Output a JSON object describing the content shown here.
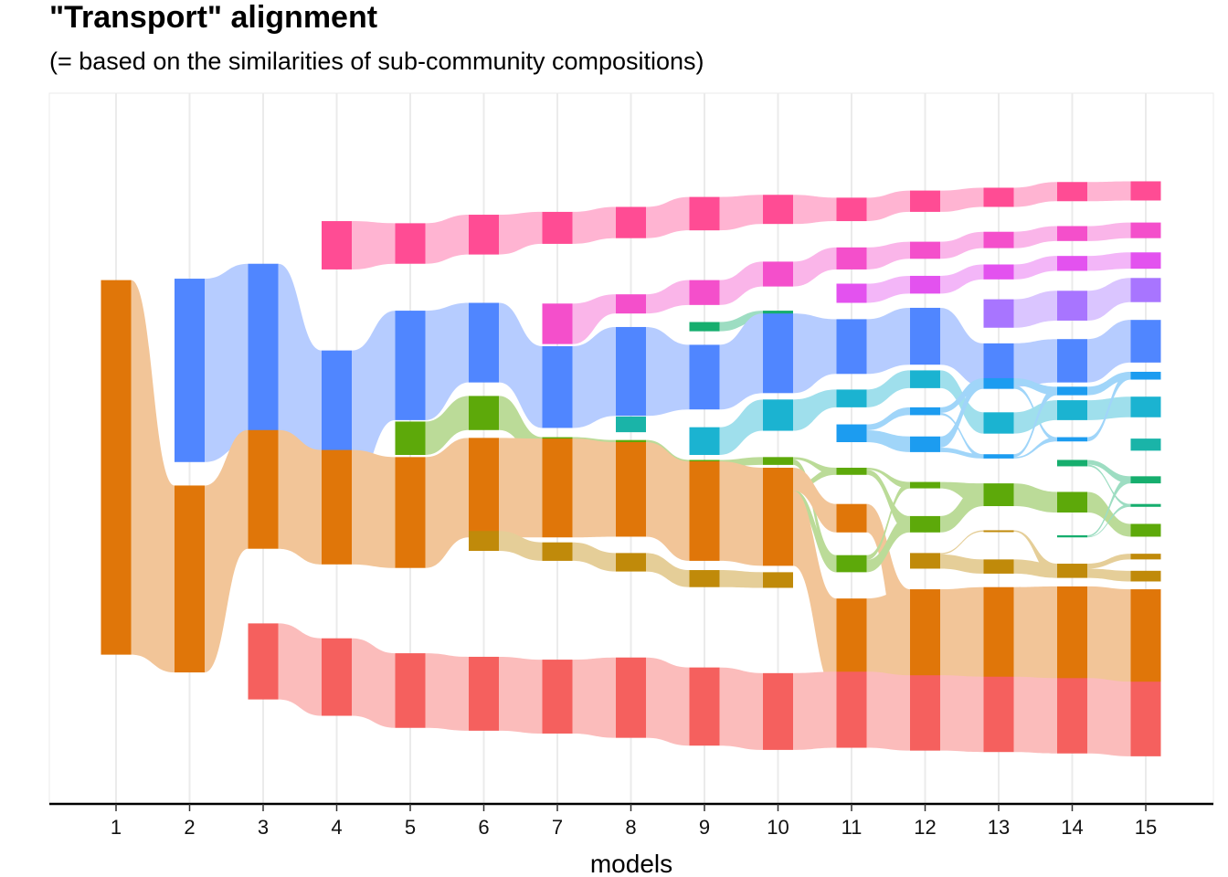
{
  "chart_data": {
    "type": "alluvial",
    "title": "\"Transport\" alignment",
    "subtitle": "(= based on the similarities of sub-community compositions)",
    "xlabel": "models",
    "ylabel": "",
    "x": [
      1,
      2,
      3,
      4,
      5,
      6,
      7,
      8,
      9,
      10,
      11,
      12,
      13,
      14,
      15
    ],
    "ylim": [
      0,
      1
    ],
    "grid": "vertical",
    "legend": "none",
    "colors": {
      "orange": "#E07609",
      "blue": "#5086FF",
      "red": "#F5605E",
      "pink": "#FF4C94",
      "green": "#5DA90A",
      "olive": "#C08A0A",
      "teal": "#1AB4A8",
      "magenta": "#F44FCB",
      "emerald": "#16AE6E",
      "cyan": "#1BB3D1",
      "sky": "#1C9CF0",
      "purple": "#E352EF",
      "violet": "#A875FF"
    },
    "nodes": [
      [
        {
          "c": "orange",
          "y0": 0.21,
          "y1": 0.737
        }
      ],
      [
        {
          "c": "blue",
          "y0": 0.481,
          "y1": 0.739
        },
        {
          "c": "orange",
          "y0": 0.185,
          "y1": 0.448
        }
      ],
      [
        {
          "c": "blue",
          "y0": 0.507,
          "y1": 0.76
        },
        {
          "c": "orange",
          "y0": 0.359,
          "y1": 0.526
        },
        {
          "c": "red",
          "y0": 0.147,
          "y1": 0.254
        }
      ],
      [
        {
          "c": "pink",
          "y0": 0.752,
          "y1": 0.82
        },
        {
          "c": "blue",
          "y0": 0.448,
          "y1": 0.638
        },
        {
          "c": "orange",
          "y0": 0.337,
          "y1": 0.498
        },
        {
          "c": "red",
          "y0": 0.124,
          "y1": 0.233
        }
      ],
      [
        {
          "c": "pink",
          "y0": 0.76,
          "y1": 0.817
        },
        {
          "c": "blue",
          "y0": 0.54,
          "y1": 0.694
        },
        {
          "c": "green",
          "y0": 0.491,
          "y1": 0.538
        },
        {
          "c": "orange",
          "y0": 0.332,
          "y1": 0.488
        },
        {
          "c": "red",
          "y0": 0.107,
          "y1": 0.212
        }
      ],
      [
        {
          "c": "pink",
          "y0": 0.773,
          "y1": 0.829
        },
        {
          "c": "blue",
          "y0": 0.593,
          "y1": 0.705
        },
        {
          "c": "green",
          "y0": 0.526,
          "y1": 0.574
        },
        {
          "c": "orange",
          "y0": 0.375,
          "y1": 0.515
        },
        {
          "c": "olive",
          "y0": 0.356,
          "y1": 0.384
        },
        {
          "c": "red",
          "y0": 0.103,
          "y1": 0.207
        }
      ],
      [
        {
          "c": "pink",
          "y0": 0.788,
          "y1": 0.833
        },
        {
          "c": "magenta",
          "y0": 0.647,
          "y1": 0.704
        },
        {
          "c": "blue",
          "y0": 0.529,
          "y1": 0.644
        },
        {
          "c": "green",
          "y0": 0.483,
          "y1": 0.516
        },
        {
          "c": "orange",
          "y0": 0.375,
          "y1": 0.514
        },
        {
          "c": "olive",
          "y0": 0.342,
          "y1": 0.368
        },
        {
          "c": "red",
          "y0": 0.099,
          "y1": 0.203
        }
      ],
      [
        {
          "c": "pink",
          "y0": 0.796,
          "y1": 0.84
        },
        {
          "c": "magenta",
          "y0": 0.69,
          "y1": 0.717
        },
        {
          "c": "blue",
          "y0": 0.546,
          "y1": 0.671
        },
        {
          "c": "teal",
          "y0": 0.523,
          "y1": 0.545
        },
        {
          "c": "green",
          "y0": 0.485,
          "y1": 0.512
        },
        {
          "c": "orange",
          "y0": 0.376,
          "y1": 0.509
        },
        {
          "c": "olive",
          "y0": 0.327,
          "y1": 0.353
        },
        {
          "c": "red",
          "y0": 0.093,
          "y1": 0.206
        }
      ],
      [
        {
          "c": "pink",
          "y0": 0.807,
          "y1": 0.854
        },
        {
          "c": "magenta",
          "y0": 0.702,
          "y1": 0.737
        },
        {
          "c": "emerald",
          "y0": 0.665,
          "y1": 0.678
        },
        {
          "c": "blue",
          "y0": 0.555,
          "y1": 0.646
        },
        {
          "c": "cyan",
          "y0": 0.491,
          "y1": 0.53
        },
        {
          "c": "green",
          "y0": 0.453,
          "y1": 0.484
        },
        {
          "c": "orange",
          "y0": 0.342,
          "y1": 0.482
        },
        {
          "c": "olive",
          "y0": 0.305,
          "y1": 0.329
        },
        {
          "c": "red",
          "y0": 0.082,
          "y1": 0.192
        }
      ],
      [
        {
          "c": "pink",
          "y0": 0.816,
          "y1": 0.857
        },
        {
          "c": "magenta",
          "y0": 0.728,
          "y1": 0.763
        },
        {
          "c": "emerald",
          "y0": 0.68,
          "y1": 0.694
        },
        {
          "c": "blue",
          "y0": 0.578,
          "y1": 0.69
        },
        {
          "c": "cyan",
          "y0": 0.525,
          "y1": 0.569
        },
        {
          "c": "green",
          "y0": 0.477,
          "y1": 0.488
        },
        {
          "c": "green",
          "y0": 0.425,
          "y1": 0.449
        },
        {
          "c": "orange",
          "y0": 0.335,
          "y1": 0.473
        },
        {
          "c": "olive",
          "y0": 0.304,
          "y1": 0.326
        },
        {
          "c": "red",
          "y0": 0.076,
          "y1": 0.184
        }
      ],
      [
        {
          "c": "pink",
          "y0": 0.82,
          "y1": 0.853
        },
        {
          "c": "magenta",
          "y0": 0.752,
          "y1": 0.783
        },
        {
          "c": "purple",
          "y0": 0.705,
          "y1": 0.732
        },
        {
          "c": "blue",
          "y0": 0.605,
          "y1": 0.682
        },
        {
          "c": "cyan",
          "y0": 0.558,
          "y1": 0.583
        },
        {
          "c": "sky",
          "y0": 0.509,
          "y1": 0.534
        },
        {
          "c": "green",
          "y0": 0.463,
          "y1": 0.473
        },
        {
          "c": "orange",
          "y0": 0.382,
          "y1": 0.422
        },
        {
          "c": "green",
          "y0": 0.326,
          "y1": 0.35
        },
        {
          "c": "orange",
          "y0": 0.158,
          "y1": 0.289
        },
        {
          "c": "red",
          "y0": 0.079,
          "y1": 0.186
        }
      ],
      [
        {
          "c": "pink",
          "y0": 0.833,
          "y1": 0.863
        },
        {
          "c": "magenta",
          "y0": 0.767,
          "y1": 0.791
        },
        {
          "c": "purple",
          "y0": 0.718,
          "y1": 0.743
        },
        {
          "c": "blue",
          "y0": 0.618,
          "y1": 0.698
        },
        {
          "c": "cyan",
          "y0": 0.585,
          "y1": 0.61
        },
        {
          "c": "sky",
          "y0": 0.547,
          "y1": 0.558
        },
        {
          "c": "sky",
          "y0": 0.495,
          "y1": 0.517
        },
        {
          "c": "green",
          "y0": 0.444,
          "y1": 0.453
        },
        {
          "c": "green",
          "y0": 0.382,
          "y1": 0.405
        },
        {
          "c": "olive",
          "y0": 0.331,
          "y1": 0.353
        },
        {
          "c": "orange",
          "y0": 0.163,
          "y1": 0.302
        },
        {
          "c": "red",
          "y0": 0.075,
          "y1": 0.181
        }
      ],
      [
        {
          "c": "pink",
          "y0": 0.84,
          "y1": 0.867
        },
        {
          "c": "magenta",
          "y0": 0.782,
          "y1": 0.805
        },
        {
          "c": "purple",
          "y0": 0.738,
          "y1": 0.759
        },
        {
          "c": "violet",
          "y0": 0.67,
          "y1": 0.71
        },
        {
          "c": "blue",
          "y0": 0.587,
          "y1": 0.648
        },
        {
          "c": "sky",
          "y0": 0.584,
          "y1": 0.599
        },
        {
          "c": "cyan",
          "y0": 0.521,
          "y1": 0.551
        },
        {
          "c": "sky",
          "y0": 0.486,
          "y1": 0.492
        },
        {
          "c": "green",
          "y0": 0.419,
          "y1": 0.451
        },
        {
          "c": "olive",
          "y0": 0.383,
          "y1": 0.385
        },
        {
          "c": "olive",
          "y0": 0.324,
          "y1": 0.344
        },
        {
          "c": "orange",
          "y0": 0.167,
          "y1": 0.305
        },
        {
          "c": "red",
          "y0": 0.073,
          "y1": 0.179
        }
      ],
      [
        {
          "c": "pink",
          "y0": 0.848,
          "y1": 0.875
        },
        {
          "c": "magenta",
          "y0": 0.792,
          "y1": 0.813
        },
        {
          "c": "purple",
          "y0": 0.75,
          "y1": 0.771
        },
        {
          "c": "violet",
          "y0": 0.68,
          "y1": 0.722
        },
        {
          "c": "blue",
          "y0": 0.593,
          "y1": 0.654
        },
        {
          "c": "sky",
          "y0": 0.575,
          "y1": 0.587
        },
        {
          "c": "cyan",
          "y0": 0.54,
          "y1": 0.568
        },
        {
          "c": "sky",
          "y0": 0.51,
          "y1": 0.516
        },
        {
          "c": "emerald",
          "y0": 0.475,
          "y1": 0.484
        },
        {
          "c": "green",
          "y0": 0.41,
          "y1": 0.439
        },
        {
          "c": "emerald",
          "y0": 0.375,
          "y1": 0.378
        },
        {
          "c": "olive",
          "y0": 0.318,
          "y1": 0.338
        },
        {
          "c": "orange",
          "y0": 0.167,
          "y1": 0.306
        },
        {
          "c": "red",
          "y0": 0.071,
          "y1": 0.177
        }
      ],
      [
        {
          "c": "pink",
          "y0": 0.849,
          "y1": 0.876
        },
        {
          "c": "magenta",
          "y0": 0.796,
          "y1": 0.818
        },
        {
          "c": "purple",
          "y0": 0.753,
          "y1": 0.776
        },
        {
          "c": "violet",
          "y0": 0.706,
          "y1": 0.74
        },
        {
          "c": "blue",
          "y0": 0.621,
          "y1": 0.681
        },
        {
          "c": "sky",
          "y0": 0.597,
          "y1": 0.608
        },
        {
          "c": "cyan",
          "y0": 0.544,
          "y1": 0.573
        },
        {
          "c": "teal",
          "y0": 0.497,
          "y1": 0.514
        },
        {
          "c": "emerald",
          "y0": 0.451,
          "y1": 0.461
        },
        {
          "c": "emerald",
          "y0": 0.418,
          "y1": 0.422
        },
        {
          "c": "green",
          "y0": 0.376,
          "y1": 0.394
        },
        {
          "c": "olive",
          "y0": 0.344,
          "y1": 0.352
        },
        {
          "c": "olive",
          "y0": 0.313,
          "y1": 0.328
        },
        {
          "c": "orange",
          "y0": 0.163,
          "y1": 0.302
        },
        {
          "c": "red",
          "y0": 0.067,
          "y1": 0.172
        }
      ]
    ]
  }
}
